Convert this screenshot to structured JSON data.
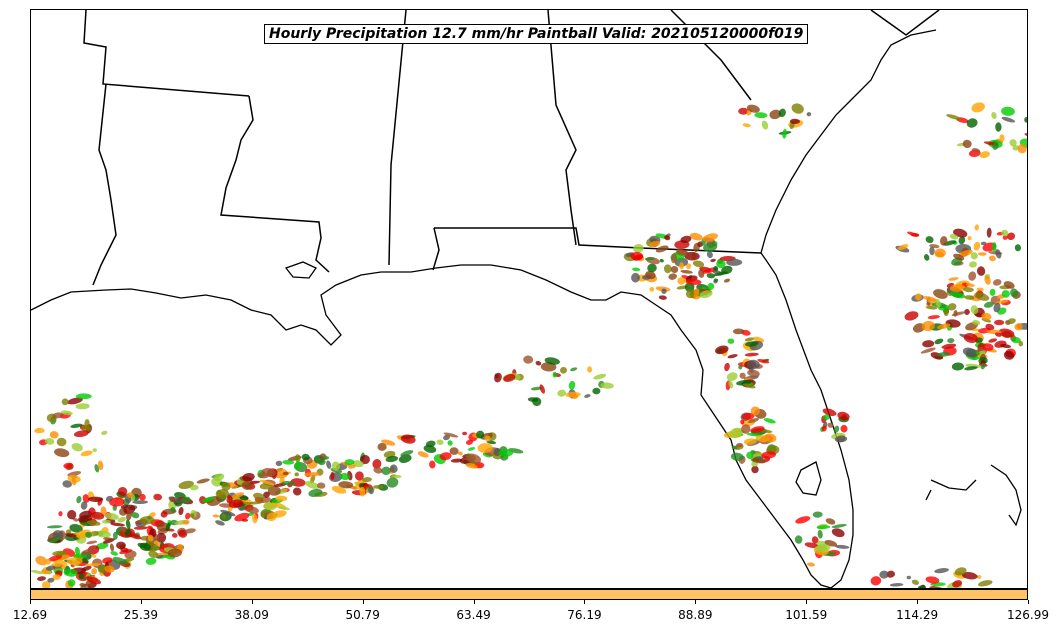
{
  "map": {
    "title": "Hourly Precipitation 12.7 mm/hr Paintball Valid: 202105120000f019",
    "region": "Gulf of Mexico / Southeast United States",
    "coastline_color": "#000000",
    "background_color": "#ffffff"
  },
  "paintball_colors": [
    "#ff0000",
    "#cc0000",
    "#8b0000",
    "#ff8c00",
    "#ffa500",
    "#9acd32",
    "#808000",
    "#228b22",
    "#00cc00",
    "#006400",
    "#8b4513",
    "#555555",
    "#a0522d"
  ],
  "colorbar": {
    "color": "#ffc266",
    "ticks": [
      "12.69",
      "25.39",
      "38.09",
      "50.79",
      "63.49",
      "76.19",
      "88.89",
      "101.59",
      "114.29",
      "126.99"
    ]
  }
}
